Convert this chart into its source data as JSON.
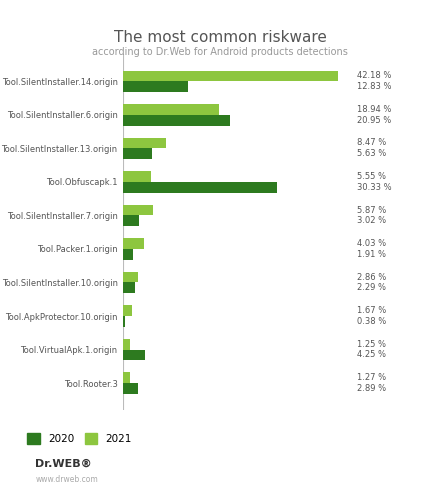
{
  "title": "The most common riskware",
  "subtitle": "according to Dr.Web for Android products detections",
  "categories": [
    "Tool.SilentInstaller.14.origin",
    "Tool.SilentInstaller.6.origin",
    "Tool.SilentInstaller.13.origin",
    "Tool.Obfuscapk.1",
    "Tool.SilentInstaller.7.origin",
    "Tool.Packer.1.origin",
    "Tool.SilentInstaller.10.origin",
    "Tool.ApkProtector.10.origin",
    "Tool.VirtualApk.1.origin",
    "Tool.Rooter.3"
  ],
  "values_2020": [
    12.83,
    20.95,
    5.63,
    30.33,
    3.02,
    1.91,
    2.29,
    0.38,
    4.25,
    2.89
  ],
  "values_2021": [
    42.18,
    18.94,
    8.47,
    5.55,
    5.87,
    4.03,
    2.86,
    1.67,
    1.25,
    1.27
  ],
  "labels_2020": [
    "12.83 %",
    "20.95 %",
    "5.63 %",
    "30.33 %",
    "3.02 %",
    "1.91 %",
    "2.29 %",
    "0.38 %",
    "4.25 %",
    "2.89 %"
  ],
  "labels_2021": [
    "42.18 %",
    "18.94 %",
    "8.47 %",
    "5.55 %",
    "5.87 %",
    "4.03 %",
    "2.86 %",
    "1.67 %",
    "1.25 %",
    "1.27 %"
  ],
  "color_2020": "#2d7a1f",
  "color_2021": "#8dc63f",
  "background_color": "#ffffff",
  "title_fontsize": 11,
  "subtitle_fontsize": 7,
  "bar_height": 0.32,
  "xlim": [
    0,
    45
  ],
  "legend_2020": "2020",
  "legend_2021": "2021",
  "watermark_text": "Dr.WEB®",
  "watermark_url": "www.drweb.com",
  "label_fontsize": 6,
  "ytick_fontsize": 6
}
